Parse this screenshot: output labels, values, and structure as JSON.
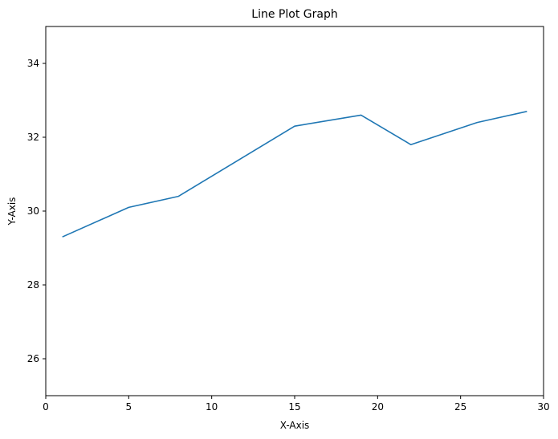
{
  "chart_data": {
    "type": "line",
    "title": "Line Plot Graph",
    "xlabel": "X-Axis",
    "ylabel": "Y-Axis",
    "xlim": [
      0,
      30
    ],
    "ylim": [
      25,
      35
    ],
    "xticks": [
      0,
      5,
      10,
      15,
      20,
      25,
      30
    ],
    "yticks": [
      26,
      28,
      30,
      32,
      34
    ],
    "grid": false,
    "series": [
      {
        "color": "#1f77b4",
        "x": [
          1,
          5,
          8,
          15,
          19,
          22,
          26,
          29
        ],
        "y": [
          29.3,
          30.1,
          30.4,
          32.3,
          32.6,
          31.8,
          32.4,
          32.7
        ]
      }
    ]
  }
}
